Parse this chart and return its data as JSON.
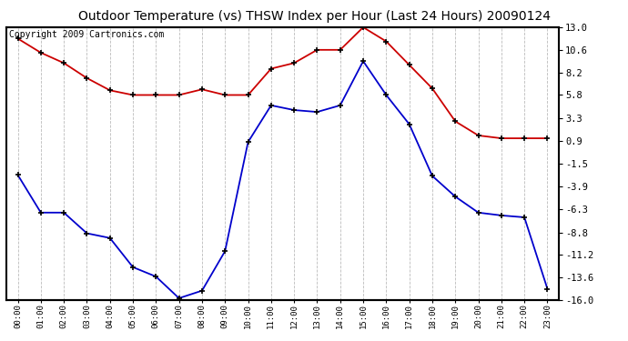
{
  "title": "Outdoor Temperature (vs) THSW Index per Hour (Last 24 Hours) 20090124",
  "copyright": "Copyright 2009 Cartronics.com",
  "hours": [
    "00:00",
    "01:00",
    "02:00",
    "03:00",
    "04:00",
    "05:00",
    "06:00",
    "07:00",
    "08:00",
    "09:00",
    "10:00",
    "11:00",
    "12:00",
    "13:00",
    "14:00",
    "15:00",
    "16:00",
    "17:00",
    "18:00",
    "19:00",
    "20:00",
    "21:00",
    "22:00",
    "23:00"
  ],
  "red_data": [
    11.8,
    10.3,
    9.2,
    7.6,
    6.3,
    5.8,
    5.8,
    5.8,
    6.4,
    5.8,
    5.8,
    8.6,
    9.2,
    10.6,
    10.6,
    13.0,
    11.5,
    9.0,
    6.5,
    3.0,
    1.5,
    1.2,
    1.2,
    1.2
  ],
  "blue_data": [
    -2.7,
    -6.7,
    -6.7,
    -8.9,
    -9.4,
    -12.5,
    -13.5,
    -15.8,
    -15.0,
    -10.8,
    0.8,
    4.7,
    4.2,
    4.0,
    4.7,
    9.4,
    5.8,
    2.7,
    -2.8,
    -5.0,
    -6.7,
    -7.0,
    -7.2,
    -14.8
  ],
  "ylim": [
    -16.0,
    13.0
  ],
  "yticks_right": [
    13.0,
    10.6,
    8.2,
    5.8,
    3.3,
    0.9,
    -1.5,
    -3.9,
    -6.3,
    -8.8,
    -11.2,
    -13.6,
    -16.0
  ],
  "red_color": "#cc0000",
  "blue_color": "#0000cc",
  "grid_color": "#bbbbbb",
  "bg_color": "#ffffff",
  "title_fontsize": 10,
  "copyright_fontsize": 7
}
